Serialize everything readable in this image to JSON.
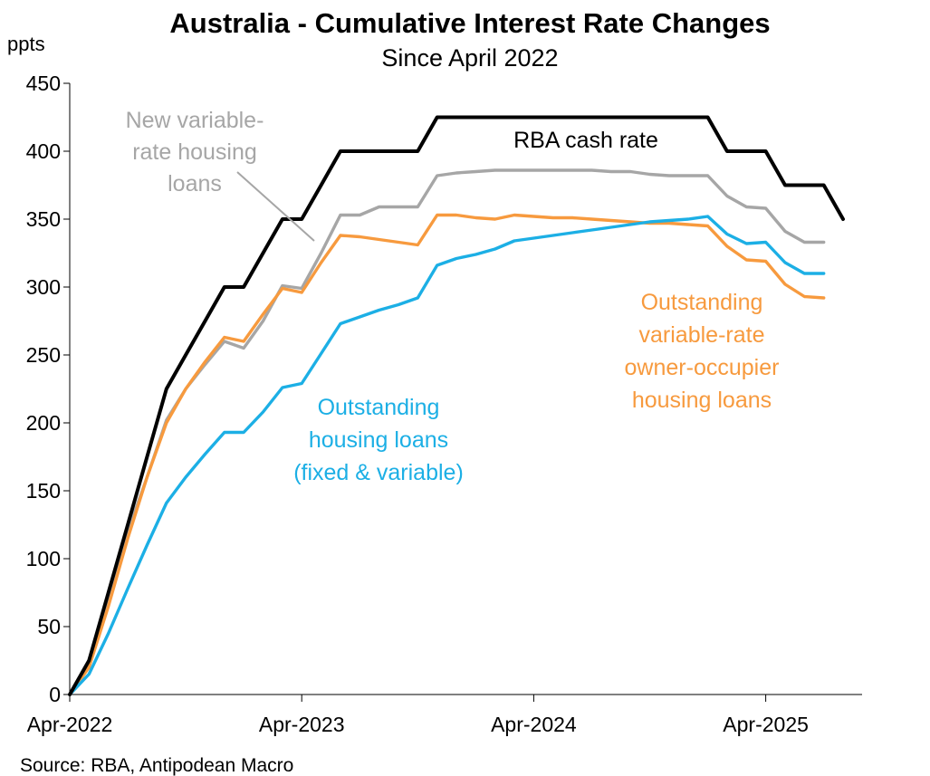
{
  "chart_data": {
    "type": "line",
    "title": "Australia - Cumulative Interest Rate Changes",
    "subtitle": "Since April 2022",
    "ylabel": "ppts",
    "ylim": [
      0,
      450
    ],
    "yticks": [
      "0",
      "50",
      "100",
      "150",
      "200",
      "250",
      "300",
      "350",
      "400",
      "450"
    ],
    "xlim": [
      "2022-04",
      "2025-08"
    ],
    "xticks": [
      {
        "date": "2022-04",
        "label": "Apr-2022"
      },
      {
        "date": "2023-04",
        "label": "Apr-2023"
      },
      {
        "date": "2024-04",
        "label": "Apr-2024"
      },
      {
        "date": "2025-04",
        "label": "Apr-2025"
      }
    ],
    "grid": false,
    "source": "Source: RBA, Antipodean Macro",
    "series": [
      {
        "name": "RBA cash rate",
        "color": "#000000",
        "x": [
          "2022-04",
          "2022-05",
          "2022-06",
          "2022-07",
          "2022-08",
          "2022-09",
          "2022-10",
          "2022-11",
          "2022-12",
          "2023-01",
          "2023-02",
          "2023-03",
          "2023-04",
          "2023-05",
          "2023-06",
          "2023-07",
          "2023-08",
          "2023-09",
          "2023-10",
          "2023-11",
          "2023-12",
          "2024-01",
          "2024-02",
          "2024-03",
          "2024-04",
          "2024-05",
          "2024-06",
          "2024-07",
          "2024-08",
          "2024-09",
          "2024-10",
          "2024-11",
          "2024-12",
          "2025-01",
          "2025-02",
          "2025-03",
          "2025-04",
          "2025-05",
          "2025-06",
          "2025-07",
          "2025-08"
        ],
        "values": [
          0,
          25,
          75,
          125,
          175,
          225,
          250,
          275,
          300,
          300,
          325,
          350,
          350,
          375,
          400,
          400,
          400,
          400,
          400,
          425,
          425,
          425,
          425,
          425,
          425,
          425,
          425,
          425,
          425,
          425,
          425,
          425,
          425,
          425,
          400,
          400,
          400,
          375,
          375,
          375,
          350
        ]
      },
      {
        "name": "New variable-rate housing loans",
        "color": "#a6a6a6",
        "x": [
          "2022-04",
          "2022-05",
          "2022-06",
          "2022-07",
          "2022-08",
          "2022-09",
          "2022-10",
          "2022-11",
          "2022-12",
          "2023-01",
          "2023-02",
          "2023-03",
          "2023-04",
          "2023-05",
          "2023-06",
          "2023-07",
          "2023-08",
          "2023-09",
          "2023-10",
          "2023-11",
          "2023-12",
          "2024-01",
          "2024-02",
          "2024-03",
          "2024-04",
          "2024-05",
          "2024-06",
          "2024-07",
          "2024-08",
          "2024-09",
          "2024-10",
          "2024-11",
          "2024-12",
          "2025-01",
          "2025-02",
          "2025-03",
          "2025-04",
          "2025-05",
          "2025-06",
          "2025-07"
        ],
        "values": [
          0,
          25,
          70,
          120,
          160,
          202,
          225,
          243,
          260,
          255,
          275,
          301,
          299,
          325,
          353,
          353,
          359,
          359,
          359,
          382,
          384,
          385,
          386,
          386,
          386,
          386,
          386,
          386,
          385,
          385,
          383,
          382,
          382,
          382,
          367,
          359,
          358,
          341,
          333,
          333
        ]
      },
      {
        "name": "Outstanding variable-rate owner-occupier housing loans",
        "color": "#f79a3e",
        "x": [
          "2022-04",
          "2022-05",
          "2022-06",
          "2022-07",
          "2022-08",
          "2022-09",
          "2022-10",
          "2022-11",
          "2022-12",
          "2023-01",
          "2023-02",
          "2023-03",
          "2023-04",
          "2023-05",
          "2023-06",
          "2023-07",
          "2023-08",
          "2023-09",
          "2023-10",
          "2023-11",
          "2023-12",
          "2024-01",
          "2024-02",
          "2024-03",
          "2024-04",
          "2024-05",
          "2024-06",
          "2024-07",
          "2024-08",
          "2024-09",
          "2024-10",
          "2024-11",
          "2024-12",
          "2025-01",
          "2025-02",
          "2025-03",
          "2025-04",
          "2025-05",
          "2025-06",
          "2025-07"
        ],
        "values": [
          0,
          20,
          65,
          115,
          160,
          200,
          225,
          245,
          263,
          260,
          280,
          299,
          296,
          318,
          338,
          337,
          335,
          333,
          331,
          353,
          353,
          351,
          350,
          353,
          352,
          351,
          351,
          350,
          349,
          348,
          347,
          347,
          346,
          345,
          330,
          320,
          319,
          302,
          293,
          292
        ]
      },
      {
        "name": "Outstanding housing loans (fixed & variable)",
        "color": "#1cafe5",
        "x": [
          "2022-04",
          "2022-05",
          "2022-06",
          "2022-07",
          "2022-08",
          "2022-09",
          "2022-10",
          "2022-11",
          "2022-12",
          "2023-01",
          "2023-02",
          "2023-03",
          "2023-04",
          "2023-05",
          "2023-06",
          "2023-07",
          "2023-08",
          "2023-09",
          "2023-10",
          "2023-11",
          "2023-12",
          "2024-01",
          "2024-02",
          "2024-03",
          "2024-04",
          "2024-05",
          "2024-06",
          "2024-07",
          "2024-08",
          "2024-09",
          "2024-10",
          "2024-11",
          "2024-12",
          "2025-01",
          "2025-02",
          "2025-03",
          "2025-04",
          "2025-05",
          "2025-06",
          "2025-07"
        ],
        "values": [
          0,
          15,
          45,
          78,
          110,
          141,
          160,
          177,
          193,
          193,
          208,
          226,
          229,
          251,
          273,
          278,
          283,
          287,
          292,
          316,
          321,
          324,
          328,
          334,
          336,
          338,
          340,
          342,
          344,
          346,
          348,
          349,
          350,
          352,
          339,
          332,
          333,
          318,
          310,
          310
        ]
      }
    ],
    "annotations": [
      {
        "series": 0,
        "lines": [
          "RBA cash rate"
        ]
      },
      {
        "series": 1,
        "lines": [
          "New variable-",
          "rate housing",
          "loans"
        ]
      },
      {
        "series": 2,
        "lines": [
          "Outstanding",
          "variable-rate",
          "owner-occupier",
          "housing loans"
        ]
      },
      {
        "series": 3,
        "lines": [
          "Outstanding",
          "housing loans",
          "(fixed & variable)"
        ]
      }
    ]
  }
}
